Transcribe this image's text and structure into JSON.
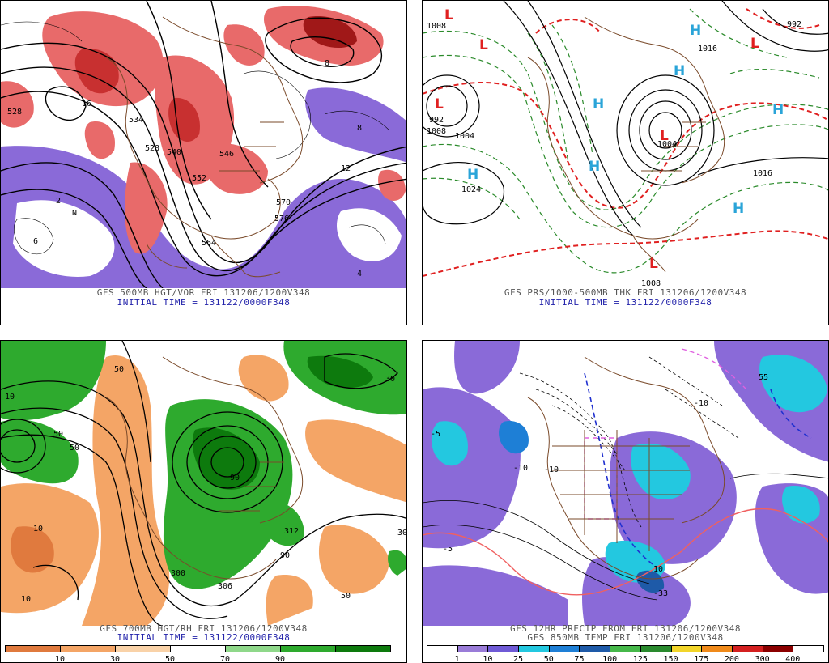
{
  "panels": {
    "p500": {
      "caption_line1": "GFS 500MB HGT/VOR FRI 131206/1200V348",
      "caption_line2": "INITIAL TIME = 131122/0000F348",
      "labels": [
        "528",
        "534",
        "540",
        "546",
        "552",
        "564",
        "570",
        "576",
        "528",
        "2",
        "4",
        "6",
        "8",
        "8",
        "12",
        "16",
        "N"
      ]
    },
    "pthk": {
      "caption_line1": "GFS PRS/1000-500MB THK FRI 131206/1200V348",
      "caption_line2": "INITIAL TIME = 131122/0000F348",
      "pressure_labels": [
        "992",
        "1008",
        "1004",
        "1024",
        "1016",
        "1008",
        "1008",
        "1004",
        "992",
        "1016"
      ],
      "centers": [
        "L",
        "L",
        "L",
        "L",
        "L",
        "L",
        "H",
        "H",
        "H",
        "H",
        "H",
        "H",
        "H"
      ]
    },
    "p700": {
      "caption_line1": "GFS 700MB HGT/RH FRI 131206/1200V348",
      "caption_line2": "INITIAL TIME = 131122/0000F348",
      "labels": [
        "50",
        "10",
        "50",
        "50",
        "10",
        "90",
        "300",
        "306",
        "312",
        "90",
        "10",
        "50",
        "30",
        "30"
      ],
      "colorbar_labels": [
        "10",
        "30",
        "50",
        "70",
        "90"
      ],
      "colors": [
        "#e07a3e",
        "#f4a566",
        "#f9d2a8",
        "#ffffff",
        "#8fd88a",
        "#2eaa2e",
        "#0d7a0d"
      ]
    },
    "pprecip": {
      "caption_line1": "GFS 12HR PRECIP FROM FRI 131206/1200V348",
      "caption_line2": "GFS 850MB TEMP FRI 131206/1200V348",
      "labels": [
        "-10",
        "-10",
        "-5",
        "10",
        "-33",
        "55",
        "-5",
        "-10"
      ],
      "colorbar_labels": [
        "1",
        "10",
        "25",
        "50",
        "75",
        "100",
        "125",
        "150",
        "175",
        "200",
        "300",
        "400"
      ],
      "colors": [
        "#ffffff",
        "#9a7cd8",
        "#6f5ad6",
        "#23c8e0",
        "#1e7fd6",
        "#1e5aa8",
        "#46b84a",
        "#2a8a2e",
        "#f2d52a",
        "#f08a1a",
        "#d42020",
        "#8b0000",
        "#ffffff"
      ]
    }
  }
}
